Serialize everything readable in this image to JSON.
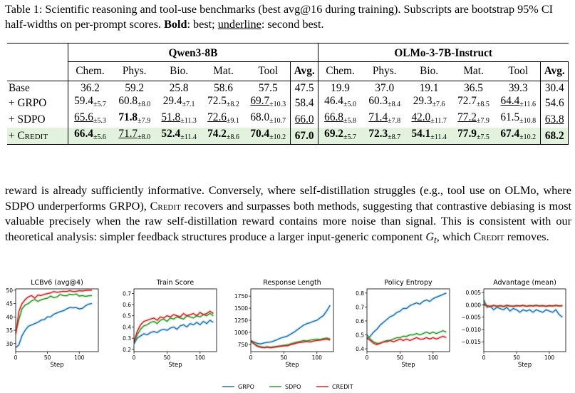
{
  "caption": {
    "label": "Table 1:",
    "text1": " Scientific reasoning and tool-use benchmarks (best avg@16 during training). Subscripts are bootstrap 95% CI half-widths on per-prompt scores. ",
    "bold_word": "Bold",
    "text2": ": best; ",
    "underline_word": "underline",
    "text3": ": second best."
  },
  "table": {
    "groups": [
      "Qwen3-8B",
      "OLMo-3-7B-Instruct"
    ],
    "columns": [
      "Chem.",
      "Phys.",
      "Bio.",
      "Mat.",
      "Tool",
      "Avg."
    ],
    "rows": [
      {
        "name": "Base",
        "q": [
          {
            "v": "36.2"
          },
          {
            "v": "59.2"
          },
          {
            "v": "25.8"
          },
          {
            "v": "58.6"
          },
          {
            "v": "57.5"
          },
          {
            "v": "47.5"
          }
        ],
        "o": [
          {
            "v": "19.9"
          },
          {
            "v": "37.0"
          },
          {
            "v": "19.1"
          },
          {
            "v": "36.5"
          },
          {
            "v": "39.3"
          },
          {
            "v": "30.4"
          }
        ]
      },
      {
        "name": "+ GRPO",
        "q": [
          {
            "v": "59.4",
            "ci": "±5.7"
          },
          {
            "v": "60.8",
            "ci": "±8.0"
          },
          {
            "v": "29.4",
            "ci": "±7.1"
          },
          {
            "v": "72.5",
            "ci": "±8.2"
          },
          {
            "v": "69.7",
            "ci": "±10.3",
            "u": true
          },
          {
            "v": "58.4"
          }
        ],
        "o": [
          {
            "v": "46.4",
            "ci": "±5.0"
          },
          {
            "v": "60.3",
            "ci": "±8.4"
          },
          {
            "v": "29.3",
            "ci": "±7.6"
          },
          {
            "v": "72.7",
            "ci": "±8.5"
          },
          {
            "v": "64.4",
            "ci": "±11.6",
            "u": true
          },
          {
            "v": "54.6"
          }
        ]
      },
      {
        "name": "+ SDPO",
        "q": [
          {
            "v": "65.6",
            "ci": "±5.3",
            "u": true
          },
          {
            "v": "71.8",
            "ci": "±7.9",
            "b": true
          },
          {
            "v": "51.8",
            "ci": "±11.3",
            "u": true
          },
          {
            "v": "72.6",
            "ci": "±9.1",
            "u": true
          },
          {
            "v": "68.0",
            "ci": "±10.7"
          },
          {
            "v": "66.0",
            "u": true
          }
        ],
        "o": [
          {
            "v": "66.8",
            "ci": "±5.8",
            "u": true
          },
          {
            "v": "71.4",
            "ci": "±7.8",
            "u": true
          },
          {
            "v": "42.0",
            "ci": "±11.7",
            "u": true
          },
          {
            "v": "77.2",
            "ci": "±7.9",
            "u": true
          },
          {
            "v": "61.5",
            "ci": "±10.8"
          },
          {
            "v": "63.8",
            "u": true
          }
        ]
      },
      {
        "name": "+ Credit",
        "credit": true,
        "q": [
          {
            "v": "66.4",
            "ci": "±5.6",
            "b": true
          },
          {
            "v": "71.7",
            "ci": "±8.0",
            "u": true
          },
          {
            "v": "52.4",
            "ci": "±11.4",
            "b": true
          },
          {
            "v": "74.2",
            "ci": "±8.6",
            "b": true
          },
          {
            "v": "70.4",
            "ci": "±10.2",
            "b": true
          },
          {
            "v": "67.0",
            "b": true
          }
        ],
        "o": [
          {
            "v": "69.2",
            "ci": "±5.7",
            "b": true
          },
          {
            "v": "72.3",
            "ci": "±8.7",
            "b": true
          },
          {
            "v": "54.1",
            "ci": "±11.4",
            "b": true
          },
          {
            "v": "77.9",
            "ci": "±7.5",
            "b": true
          },
          {
            "v": "67.4",
            "ci": "±10.2",
            "b": true
          },
          {
            "v": "68.2",
            "b": true
          }
        ]
      }
    ]
  },
  "paragraph": {
    "p1": "reward is already sufficiently informative. Conversely, where self-distillation struggles (e.g., tool use on OLMo, where SDPO underperforms GRPO), ",
    "credit1": "Credit",
    "p2": " recovers and surpasses both methods, suggesting that contrastive debiasing is most valuable precisely when the raw self-distillation reward contains more noise than signal. This is consistent with our theoretical analysis: simpler feedback structures produce a larger input-generic component ",
    "math_g": "G",
    "math_t": "t",
    "p3": ", which ",
    "credit2": "Credit",
    "p4": " removes."
  },
  "colors": {
    "GRPO": "#1f77b4",
    "SDPO": "#2ca02c",
    "CREDIT": "#d62728"
  },
  "legend": [
    "GRPO",
    "SDPO",
    "CREDIT"
  ],
  "chart_data": [
    {
      "type": "line",
      "title": "LCBv6 (avg@4)",
      "xlabel": "Step",
      "xlim": [
        0,
        130
      ],
      "ylim": [
        27,
        50.5
      ],
      "xticks": [
        0,
        50,
        100
      ],
      "yticks": [
        30,
        35,
        40,
        45,
        50
      ],
      "x": [
        0,
        5,
        10,
        15,
        20,
        25,
        30,
        35,
        40,
        45,
        50,
        55,
        60,
        65,
        70,
        75,
        80,
        85,
        90,
        95,
        100,
        105,
        110,
        115,
        120
      ],
      "series": [
        {
          "name": "GRPO",
          "values": [
            28.5,
            29.5,
            33,
            35,
            36.5,
            37,
            37.5,
            38,
            38.8,
            39,
            40,
            40,
            41,
            41.5,
            42,
            42.3,
            43,
            43.5,
            43.4,
            43.5,
            43,
            43.2,
            44.2,
            44.8,
            45
          ]
        },
        {
          "name": "SDPO",
          "values": [
            34,
            39,
            43,
            44.5,
            45,
            46,
            46.5,
            45.8,
            46.4,
            46.8,
            47,
            47.8,
            47.2,
            47.5,
            48.4,
            48,
            47.9,
            48.5,
            48.3,
            48.6,
            47.8,
            48,
            47.7,
            47.9,
            48
          ]
        },
        {
          "name": "CREDIT",
          "values": [
            33.5,
            42,
            45,
            46.5,
            47.5,
            48,
            47,
            48.2,
            48,
            48.5,
            48.7,
            49,
            49.5,
            49.2,
            49.4,
            49.6,
            49.5,
            49.8,
            49.5,
            49.6,
            49.8,
            49.7,
            49.9,
            50,
            50
          ]
        }
      ]
    },
    {
      "type": "line",
      "title": "Train Score",
      "xlabel": "Step",
      "xlim": [
        0,
        125
      ],
      "ylim": [
        0.18,
        0.74
      ],
      "xticks": [
        0,
        50,
        100
      ],
      "yticks": [
        0.2,
        0.3,
        0.4,
        0.5,
        0.6,
        0.7
      ],
      "x": [
        0,
        5,
        10,
        15,
        20,
        25,
        30,
        35,
        40,
        45,
        50,
        55,
        60,
        65,
        70,
        75,
        80,
        85,
        90,
        95,
        100,
        105,
        110,
        115,
        120
      ],
      "series": [
        {
          "name": "GRPO",
          "values": [
            0.25,
            0.3,
            0.32,
            0.34,
            0.33,
            0.35,
            0.36,
            0.35,
            0.37,
            0.38,
            0.37,
            0.39,
            0.4,
            0.38,
            0.41,
            0.42,
            0.4,
            0.43,
            0.42,
            0.44,
            0.42,
            0.45,
            0.43,
            0.46,
            0.44
          ]
        },
        {
          "name": "SDPO",
          "values": [
            0.26,
            0.33,
            0.38,
            0.41,
            0.42,
            0.44,
            0.45,
            0.43,
            0.46,
            0.47,
            0.45,
            0.48,
            0.47,
            0.49,
            0.48,
            0.47,
            0.5,
            0.49,
            0.48,
            0.5,
            0.49,
            0.51,
            0.5,
            0.52,
            0.5
          ]
        },
        {
          "name": "CREDIT",
          "values": [
            0.27,
            0.36,
            0.42,
            0.45,
            0.46,
            0.47,
            0.48,
            0.46,
            0.49,
            0.48,
            0.5,
            0.49,
            0.51,
            0.5,
            0.49,
            0.52,
            0.5,
            0.51,
            0.52,
            0.5,
            0.53,
            0.51,
            0.52,
            0.54,
            0.52
          ]
        }
      ]
    },
    {
      "type": "line",
      "title": "Response Length",
      "xlabel": "Step",
      "xlim": [
        0,
        125
      ],
      "ylim": [
        600,
        1900
      ],
      "xticks": [
        0,
        50,
        100
      ],
      "yticks": [
        750,
        1000,
        1250,
        1500,
        1750
      ],
      "x": [
        0,
        5,
        10,
        15,
        20,
        25,
        30,
        35,
        40,
        45,
        50,
        55,
        60,
        65,
        70,
        75,
        80,
        85,
        90,
        95,
        100,
        105,
        110,
        115,
        120
      ],
      "series": [
        {
          "name": "GRPO",
          "values": [
            830,
            800,
            770,
            760,
            780,
            790,
            800,
            820,
            850,
            880,
            900,
            920,
            960,
            1000,
            1050,
            1100,
            1150,
            1180,
            1200,
            1230,
            1250,
            1300,
            1350,
            1450,
            1560
          ]
        },
        {
          "name": "SDPO",
          "values": [
            820,
            770,
            720,
            700,
            690,
            700,
            690,
            700,
            710,
            720,
            730,
            740,
            760,
            780,
            800,
            810,
            830,
            820,
            840,
            850,
            860,
            850,
            870,
            880,
            860
          ]
        },
        {
          "name": "CREDIT",
          "values": [
            810,
            760,
            710,
            690,
            680,
            690,
            680,
            690,
            700,
            710,
            720,
            720,
            740,
            760,
            780,
            790,
            800,
            810,
            800,
            820,
            830,
            840,
            850,
            860,
            840
          ]
        }
      ]
    },
    {
      "type": "line",
      "title": "Policy Entropy",
      "xlabel": "Step",
      "xlim": [
        0,
        125
      ],
      "ylim": [
        0.38,
        0.83
      ],
      "xticks": [
        0,
        50,
        100
      ],
      "yticks": [
        0.4,
        0.5,
        0.6,
        0.7,
        0.8
      ],
      "x": [
        0,
        5,
        10,
        15,
        20,
        25,
        30,
        35,
        40,
        45,
        50,
        55,
        60,
        65,
        70,
        75,
        80,
        85,
        90,
        95,
        100,
        105,
        110,
        115,
        120
      ],
      "series": [
        {
          "name": "GRPO",
          "values": [
            0.47,
            0.49,
            0.52,
            0.54,
            0.57,
            0.59,
            0.61,
            0.63,
            0.64,
            0.66,
            0.67,
            0.69,
            0.69,
            0.71,
            0.72,
            0.73,
            0.72,
            0.74,
            0.75,
            0.74,
            0.76,
            0.77,
            0.78,
            0.79,
            0.8
          ]
        },
        {
          "name": "SDPO",
          "values": [
            0.5,
            0.47,
            0.45,
            0.44,
            0.44,
            0.45,
            0.46,
            0.46,
            0.47,
            0.48,
            0.48,
            0.49,
            0.49,
            0.5,
            0.5,
            0.51,
            0.5,
            0.51,
            0.52,
            0.51,
            0.52,
            0.51,
            0.52,
            0.53,
            0.52
          ]
        },
        {
          "name": "CREDIT",
          "values": [
            0.48,
            0.46,
            0.44,
            0.43,
            0.44,
            0.45,
            0.45,
            0.46,
            0.45,
            0.46,
            0.47,
            0.46,
            0.47,
            0.46,
            0.47,
            0.48,
            0.47,
            0.47,
            0.48,
            0.47,
            0.48,
            0.47,
            0.48,
            0.49,
            0.48
          ]
        }
      ]
    },
    {
      "type": "line",
      "title": "Advantage (mean)",
      "xlabel": "Step",
      "xlim": [
        0,
        125
      ],
      "ylim": [
        -0.019,
        0.0065
      ],
      "xticks": [
        0,
        50,
        100
      ],
      "yticks": [
        0.005,
        0.0,
        -0.005,
        -0.01,
        -0.015
      ],
      "ytick_labels": [
        "0.005",
        "0.000",
        "−0.005",
        "−0.010",
        "−0.015"
      ],
      "x": [
        0,
        5,
        10,
        15,
        20,
        25,
        30,
        35,
        40,
        45,
        50,
        55,
        60,
        65,
        70,
        75,
        80,
        85,
        90,
        95,
        100,
        105,
        110,
        115,
        120
      ],
      "series": [
        {
          "name": "GRPO",
          "values": [
            0.002,
            -0.001,
            -0.0005,
            -0.002,
            -0.001,
            -0.0015,
            -0.002,
            -0.001,
            -0.0025,
            -0.0015,
            -0.002,
            -0.003,
            -0.002,
            -0.0025,
            -0.002,
            -0.003,
            -0.002,
            -0.0025,
            -0.003,
            -0.002,
            -0.0025,
            -0.003,
            -0.002,
            -0.004,
            -0.005
          ]
        },
        {
          "name": "SDPO",
          "values": [
            0.0,
            -0.0005,
            -0.0008,
            -0.0003,
            -0.0006,
            -0.0004,
            -0.0007,
            -0.0003,
            -0.0005,
            -0.0006,
            -0.0004,
            -0.0005,
            -0.0003,
            -0.0006,
            -0.0004,
            -0.0005,
            -0.0003,
            -0.0005,
            -0.0004,
            -0.0006,
            -0.0004,
            -0.0005,
            -0.0003,
            -0.0005,
            -0.0004
          ]
        },
        {
          "name": "CREDIT",
          "values": [
            0.0005,
            -0.0003,
            -0.0006,
            -0.0002,
            -0.0005,
            -0.0003,
            -0.0006,
            -0.0002,
            -0.0004,
            -0.0005,
            -0.0003,
            -0.0004,
            -0.0002,
            -0.0005,
            -0.0003,
            -0.0004,
            -0.0002,
            -0.0004,
            -0.0003,
            -0.0005,
            -0.0003,
            -0.0004,
            -0.0002,
            -0.0004,
            -0.0003
          ]
        }
      ]
    }
  ]
}
